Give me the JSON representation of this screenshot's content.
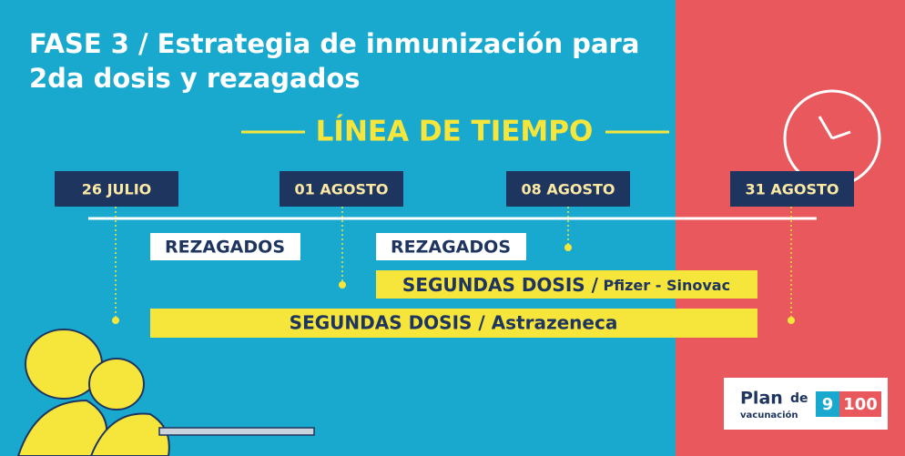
{
  "title": [
    "FASE 3 / Estrategia de inmunización para",
    "2da dosis y rezagados"
  ],
  "timeline_heading": "LÍNEA DE TIEMPO",
  "dates": [
    "26 JULIO",
    "01 AGOSTO",
    "08 AGOSTO",
    "31 AGOSTO"
  ],
  "bars": [
    {
      "label": "REZAGADOS"
    },
    {
      "label": "REZAGADOS"
    },
    {
      "label": "SEGUNDAS DOSIS /",
      "detail": "Pfizer - Sinovac"
    },
    {
      "label": "SEGUNDAS DOSIS / Astrazeneca"
    }
  ],
  "logo": {
    "plan": "Plan",
    "de": "de",
    "vacunacion": "vacunación",
    "numbers": [
      "9",
      "100"
    ]
  }
}
